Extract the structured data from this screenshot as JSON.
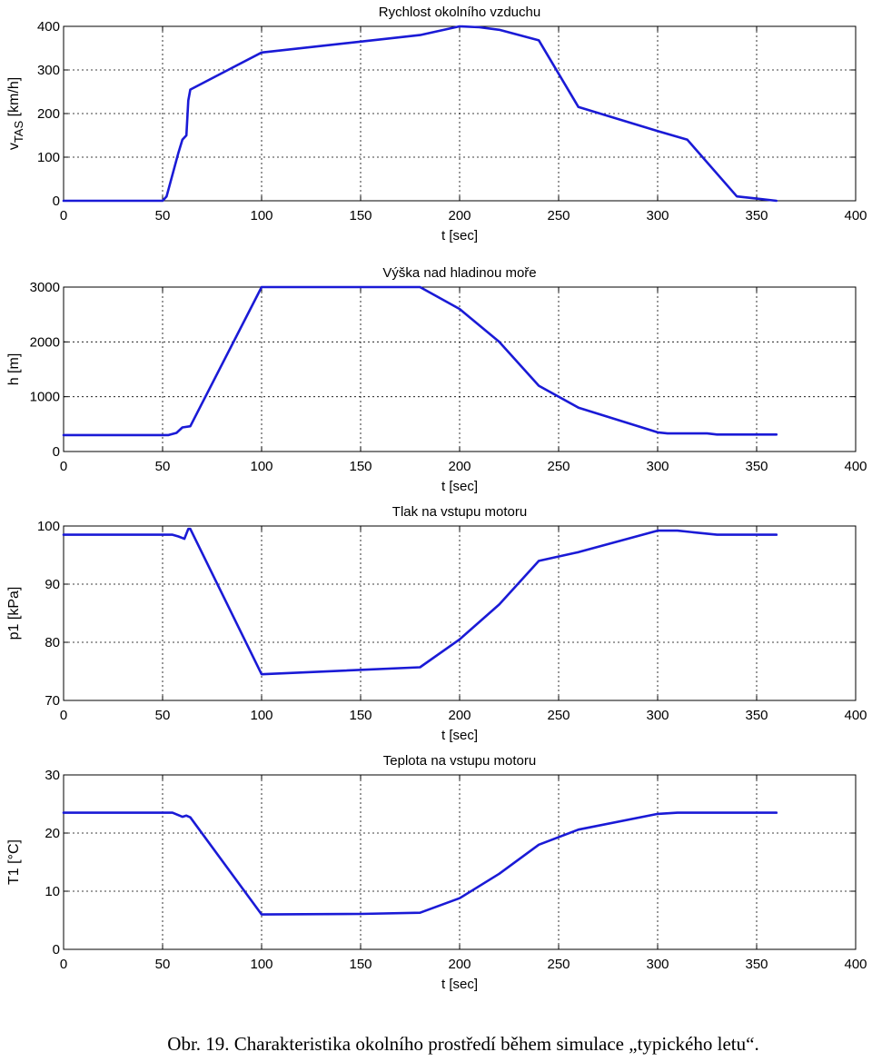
{
  "caption": "Obr. 19. Charakteristika okolního prostředí během simulace „typického letu“.",
  "colors": {
    "line": "#1a1ad6",
    "grid": "#000000",
    "axes": "#000000"
  },
  "chart_data": [
    {
      "type": "line",
      "title": "Rychlost okolního vzduchu",
      "xlabel": "t [sec]",
      "ylabel": "v",
      "ylabel_sub": "TAS",
      "ylabel_unit": " [km/h]",
      "xlim": [
        0,
        400
      ],
      "ylim": [
        0,
        400
      ],
      "xticks": [
        0,
        50,
        100,
        150,
        200,
        250,
        300,
        350,
        400
      ],
      "yticks": [
        0,
        100,
        200,
        300,
        400
      ],
      "grid": true,
      "series": [
        {
          "x": [
            0,
            50,
            52,
            55,
            58,
            60,
            62,
            63,
            64,
            100,
            150,
            180,
            200,
            210,
            220,
            240,
            260,
            300,
            315,
            340,
            350,
            360
          ],
          "y": [
            0,
            0,
            10,
            60,
            110,
            140,
            150,
            230,
            255,
            340,
            365,
            380,
            400,
            398,
            392,
            368,
            215,
            160,
            140,
            10,
            5,
            0
          ]
        }
      ]
    },
    {
      "type": "line",
      "title": "Výška nad hladinou moře",
      "xlabel": "t [sec]",
      "ylabel": "h [m]",
      "xlim": [
        0,
        400
      ],
      "ylim": [
        0,
        3000
      ],
      "xticks": [
        0,
        50,
        100,
        150,
        200,
        250,
        300,
        350,
        400
      ],
      "yticks": [
        0,
        1000,
        2000,
        3000
      ],
      "grid": true,
      "series": [
        {
          "x": [
            0,
            53,
            57,
            60,
            64,
            100,
            180,
            200,
            220,
            240,
            260,
            300,
            305,
            325,
            330,
            360
          ],
          "y": [
            300,
            300,
            340,
            440,
            460,
            3000,
            3000,
            2600,
            2000,
            1200,
            800,
            350,
            330,
            330,
            310,
            310
          ]
        }
      ]
    },
    {
      "type": "line",
      "title": "Tlak na vstupu motoru",
      "xlabel": "t [sec]",
      "ylabel": "p1 [kPa]",
      "xlim": [
        0,
        400
      ],
      "ylim": [
        70,
        100
      ],
      "xticks": [
        0,
        50,
        100,
        150,
        200,
        250,
        300,
        350,
        400
      ],
      "yticks": [
        70,
        80,
        90,
        100
      ],
      "grid": true,
      "series": [
        {
          "x": [
            0,
            55,
            58,
            61,
            63,
            64,
            100,
            180,
            200,
            220,
            240,
            260,
            300,
            310,
            330,
            360
          ],
          "y": [
            98.5,
            98.5,
            98.2,
            97.8,
            99.5,
            99.5,
            74.5,
            75.7,
            80.5,
            86.5,
            94,
            95.5,
            99.2,
            99.2,
            98.5,
            98.5
          ]
        }
      ]
    },
    {
      "type": "line",
      "title": "Teplota na vstupu motoru",
      "xlabel": "t [sec]",
      "ylabel": "T1 [°C]",
      "xlim": [
        0,
        400
      ],
      "ylim": [
        0,
        30
      ],
      "xticks": [
        0,
        50,
        100,
        150,
        200,
        250,
        300,
        350,
        400
      ],
      "yticks": [
        0,
        10,
        20,
        30
      ],
      "grid": true,
      "series": [
        {
          "x": [
            0,
            55,
            60,
            62,
            64,
            100,
            150,
            180,
            200,
            220,
            240,
            260,
            300,
            310,
            360
          ],
          "y": [
            23.5,
            23.5,
            22.8,
            23,
            22.7,
            6,
            6.1,
            6.3,
            8.8,
            13,
            18,
            20.6,
            23.3,
            23.5,
            23.5
          ]
        }
      ]
    }
  ]
}
